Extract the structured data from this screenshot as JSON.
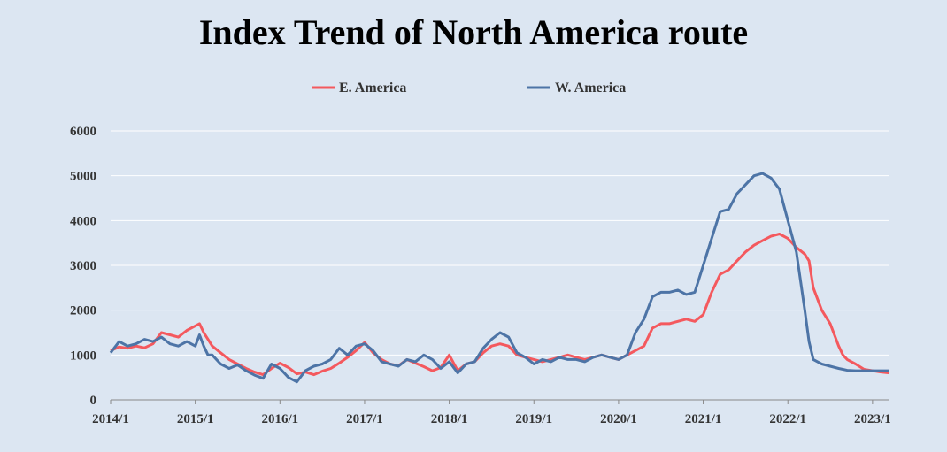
{
  "chart_data": {
    "type": "line",
    "title": "Index Trend of North America route",
    "xlabel": "",
    "ylabel": "",
    "ylim": [
      0,
      6000
    ],
    "yticks": [
      0,
      1000,
      2000,
      3000,
      4000,
      5000,
      6000
    ],
    "xticks": [
      "2014/1",
      "2015/1",
      "2016/1",
      "2017/1",
      "2018/1",
      "2019/1",
      "2020/1",
      "2021/1",
      "2022/1",
      "2023/1"
    ],
    "xlim": [
      2014.0,
      2023.2
    ],
    "grid": "horizontal",
    "legend_position": "top-center",
    "series": [
      {
        "name": "E. America",
        "color": "#f4595e",
        "x": [
          2014.0,
          2014.1,
          2014.2,
          2014.3,
          2014.4,
          2014.5,
          2014.6,
          2014.7,
          2014.8,
          2014.9,
          2015.0,
          2015.05,
          2015.1,
          2015.15,
          2015.2,
          2015.3,
          2015.4,
          2015.5,
          2015.6,
          2015.7,
          2015.8,
          2015.9,
          2016.0,
          2016.1,
          2016.2,
          2016.3,
          2016.4,
          2016.5,
          2016.6,
          2016.7,
          2016.8,
          2016.9,
          2017.0,
          2017.1,
          2017.2,
          2017.3,
          2017.4,
          2017.5,
          2017.6,
          2017.7,
          2017.8,
          2017.9,
          2018.0,
          2018.1,
          2018.2,
          2018.3,
          2018.4,
          2018.5,
          2018.6,
          2018.7,
          2018.8,
          2018.9,
          2019.0,
          2019.1,
          2019.2,
          2019.3,
          2019.4,
          2019.5,
          2019.6,
          2019.7,
          2019.8,
          2019.9,
          2020.0,
          2020.1,
          2020.2,
          2020.3,
          2020.4,
          2020.5,
          2020.6,
          2020.7,
          2020.8,
          2020.9,
          2021.0,
          2021.1,
          2021.2,
          2021.3,
          2021.4,
          2021.5,
          2021.6,
          2021.7,
          2021.8,
          2021.9,
          2022.0,
          2022.1,
          2022.2,
          2022.25,
          2022.3,
          2022.4,
          2022.5,
          2022.6,
          2022.65,
          2022.7,
          2022.8,
          2022.9,
          2023.0,
          2023.1,
          2023.2
        ],
        "values": [
          1100,
          1180,
          1150,
          1200,
          1160,
          1250,
          1500,
          1450,
          1400,
          1550,
          1650,
          1700,
          1500,
          1350,
          1200,
          1050,
          900,
          800,
          700,
          620,
          560,
          700,
          820,
          720,
          580,
          620,
          560,
          640,
          700,
          820,
          950,
          1100,
          1280,
          1050,
          900,
          800,
          760,
          900,
          820,
          740,
          650,
          720,
          1000,
          650,
          800,
          850,
          1050,
          1200,
          1250,
          1200,
          1000,
          950,
          900,
          850,
          900,
          950,
          1000,
          950,
          900,
          950,
          1000,
          950,
          900,
          1000,
          1100,
          1200,
          1600,
          1700,
          1700,
          1750,
          1800,
          1750,
          1900,
          2400,
          2800,
          2900,
          3100,
          3300,
          3450,
          3550,
          3650,
          3700,
          3600,
          3400,
          3250,
          3100,
          2500,
          2000,
          1700,
          1200,
          1000,
          900,
          800,
          680,
          650,
          620,
          600
        ]
      },
      {
        "name": "W. America",
        "color": "#4d74a6",
        "x": [
          2014.0,
          2014.1,
          2014.2,
          2014.3,
          2014.4,
          2014.5,
          2014.6,
          2014.7,
          2014.8,
          2014.9,
          2015.0,
          2015.05,
          2015.1,
          2015.15,
          2015.2,
          2015.3,
          2015.4,
          2015.5,
          2015.6,
          2015.7,
          2015.8,
          2015.9,
          2016.0,
          2016.1,
          2016.2,
          2016.3,
          2016.4,
          2016.5,
          2016.6,
          2016.7,
          2016.8,
          2016.9,
          2017.0,
          2017.1,
          2017.2,
          2017.3,
          2017.4,
          2017.5,
          2017.6,
          2017.7,
          2017.8,
          2017.9,
          2018.0,
          2018.1,
          2018.2,
          2018.3,
          2018.4,
          2018.5,
          2018.6,
          2018.7,
          2018.8,
          2018.9,
          2019.0,
          2019.1,
          2019.2,
          2019.3,
          2019.4,
          2019.5,
          2019.6,
          2019.7,
          2019.8,
          2019.9,
          2020.0,
          2020.1,
          2020.2,
          2020.3,
          2020.4,
          2020.5,
          2020.6,
          2020.7,
          2020.8,
          2020.9,
          2021.0,
          2021.1,
          2021.2,
          2021.3,
          2021.4,
          2021.5,
          2021.6,
          2021.7,
          2021.8,
          2021.9,
          2022.0,
          2022.1,
          2022.2,
          2022.25,
          2022.3,
          2022.4,
          2022.5,
          2022.6,
          2022.65,
          2022.7,
          2022.8,
          2022.9,
          2023.0,
          2023.1,
          2023.2
        ],
        "values": [
          1050,
          1300,
          1200,
          1250,
          1350,
          1300,
          1400,
          1250,
          1200,
          1300,
          1200,
          1450,
          1200,
          1000,
          1000,
          800,
          700,
          780,
          650,
          550,
          480,
          800,
          700,
          500,
          400,
          650,
          750,
          800,
          900,
          1150,
          1000,
          1200,
          1250,
          1100,
          850,
          800,
          750,
          900,
          850,
          1000,
          900,
          700,
          850,
          600,
          800,
          850,
          1150,
          1350,
          1500,
          1400,
          1050,
          950,
          800,
          900,
          850,
          950,
          900,
          900,
          850,
          950,
          1000,
          950,
          900,
          1000,
          1500,
          1800,
          2300,
          2400,
          2400,
          2450,
          2350,
          2400,
          3000,
          3600,
          4200,
          4250,
          4600,
          4800,
          5000,
          5050,
          4950,
          4700,
          4000,
          3300,
          2000,
          1300,
          900,
          800,
          750,
          700,
          680,
          660,
          650,
          650,
          650,
          650,
          650
        ]
      }
    ]
  }
}
